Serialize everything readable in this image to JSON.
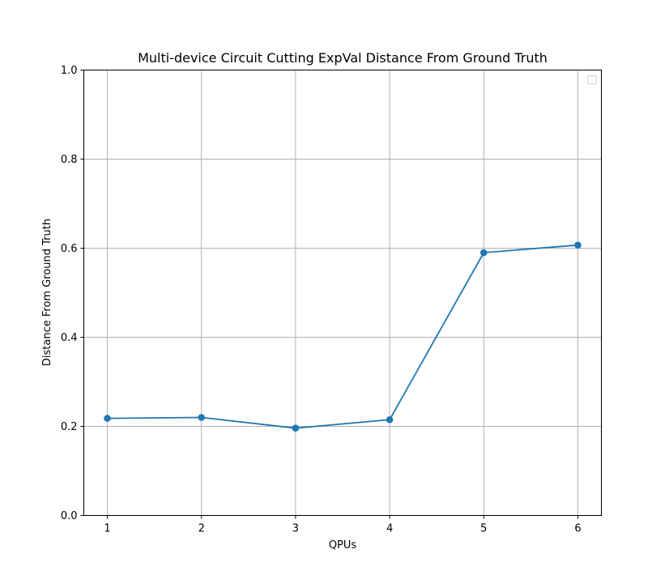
{
  "chart_data": {
    "type": "line",
    "title": "Multi-device Circuit Cutting ExpVal Distance From Ground Truth",
    "xlabel": "QPUs",
    "ylabel": "Distance From Ground Truth",
    "x": [
      1,
      2,
      3,
      4,
      5,
      6
    ],
    "x_tick_labels": [
      "1",
      "2",
      "3",
      "4",
      "5",
      "6"
    ],
    "xlim": [
      0.75,
      6.25
    ],
    "ylim": [
      0.0,
      1.0
    ],
    "y_ticks": [
      0.0,
      0.2,
      0.4,
      0.6,
      0.8,
      1.0
    ],
    "y_tick_labels": [
      "0.0",
      "0.2",
      "0.4",
      "0.6",
      "0.8",
      "1.0"
    ],
    "grid": true,
    "legend": "top-right (empty)",
    "series": [
      {
        "values": [
          0.218,
          0.22,
          0.196,
          0.215,
          0.59,
          0.607
        ],
        "color": "#1f77b4",
        "marker": "circle"
      }
    ]
  }
}
